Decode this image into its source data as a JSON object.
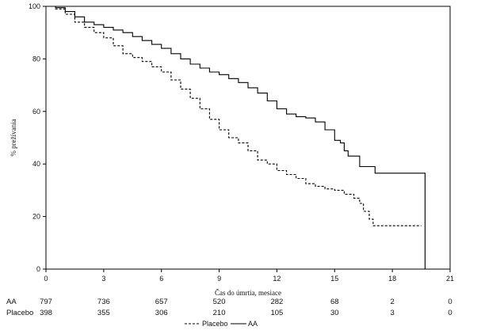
{
  "chart_data": {
    "type": "line",
    "title": "",
    "xlabel": "Čas do úmrtia, mesiace",
    "ylabel": "%  prežívania",
    "xlim": [
      0,
      21
    ],
    "ylim": [
      0,
      100
    ],
    "x_ticks": [
      0,
      3,
      6,
      9,
      12,
      15,
      18,
      21
    ],
    "y_ticks": [
      0,
      20,
      40,
      60,
      80,
      100
    ],
    "grid": false,
    "legend_position": "bottom-center",
    "series": [
      {
        "name": "AA",
        "style": "solid",
        "color": "#000000",
        "points": [
          [
            0,
            100
          ],
          [
            0.5,
            99.5
          ],
          [
            1,
            98
          ],
          [
            1.5,
            96
          ],
          [
            2,
            94
          ],
          [
            2.5,
            93
          ],
          [
            3,
            92
          ],
          [
            3.5,
            91
          ],
          [
            4,
            90
          ],
          [
            4.5,
            88.5
          ],
          [
            5,
            87
          ],
          [
            5.5,
            85.5
          ],
          [
            6,
            84
          ],
          [
            6.5,
            82
          ],
          [
            7,
            80
          ],
          [
            7.5,
            78
          ],
          [
            8,
            76.5
          ],
          [
            8.5,
            75
          ],
          [
            9,
            74
          ],
          [
            9.5,
            72.5
          ],
          [
            10,
            71
          ],
          [
            10.5,
            69
          ],
          [
            11,
            67
          ],
          [
            11.5,
            64
          ],
          [
            12,
            61
          ],
          [
            12.5,
            59
          ],
          [
            13,
            58
          ],
          [
            13.5,
            57.5
          ],
          [
            14,
            56
          ],
          [
            14.5,
            53
          ],
          [
            15,
            49
          ],
          [
            15.3,
            48
          ],
          [
            15.5,
            45
          ],
          [
            15.7,
            43
          ],
          [
            16,
            43
          ],
          [
            16.3,
            39
          ],
          [
            16.5,
            39
          ],
          [
            17,
            39
          ],
          [
            17.1,
            36.5
          ],
          [
            19.7,
            36.5
          ],
          [
            19.7,
            0
          ]
        ]
      },
      {
        "name": "Placebo",
        "style": "dashed",
        "color": "#000000",
        "points": [
          [
            0,
            100
          ],
          [
            0.5,
            99
          ],
          [
            1,
            97
          ],
          [
            1.5,
            94
          ],
          [
            2,
            92
          ],
          [
            2.5,
            90
          ],
          [
            3,
            88
          ],
          [
            3.5,
            85
          ],
          [
            4,
            82
          ],
          [
            4.5,
            80.5
          ],
          [
            5,
            79
          ],
          [
            5.5,
            77
          ],
          [
            6,
            75
          ],
          [
            6.5,
            72
          ],
          [
            7,
            68.5
          ],
          [
            7.5,
            65
          ],
          [
            8,
            61
          ],
          [
            8.5,
            57
          ],
          [
            9,
            53
          ],
          [
            9.5,
            50
          ],
          [
            10,
            48
          ],
          [
            10.5,
            45
          ],
          [
            11,
            41.5
          ],
          [
            11.5,
            40
          ],
          [
            12,
            37.5
          ],
          [
            12.5,
            36
          ],
          [
            13,
            34.5
          ],
          [
            13.5,
            32.5
          ],
          [
            14,
            31.5
          ],
          [
            14.5,
            30.5
          ],
          [
            15,
            30
          ],
          [
            15.5,
            28.5
          ],
          [
            16,
            27
          ],
          [
            16.3,
            25
          ],
          [
            16.5,
            22
          ],
          [
            16.8,
            19
          ],
          [
            17,
            16.5
          ],
          [
            17.3,
            16.5
          ],
          [
            19.5,
            16.5
          ]
        ]
      }
    ],
    "risk_table": {
      "timepoints": [
        0,
        3,
        6,
        9,
        12,
        15,
        18,
        21
      ],
      "rows": [
        {
          "label": "AA",
          "values": [
            "797",
            "736",
            "657",
            "520",
            "282",
            "68",
            "2",
            "0"
          ]
        },
        {
          "label": "Placebo",
          "values": [
            "398",
            "355",
            "306",
            "210",
            "105",
            "30",
            "3",
            "0"
          ]
        }
      ]
    }
  }
}
